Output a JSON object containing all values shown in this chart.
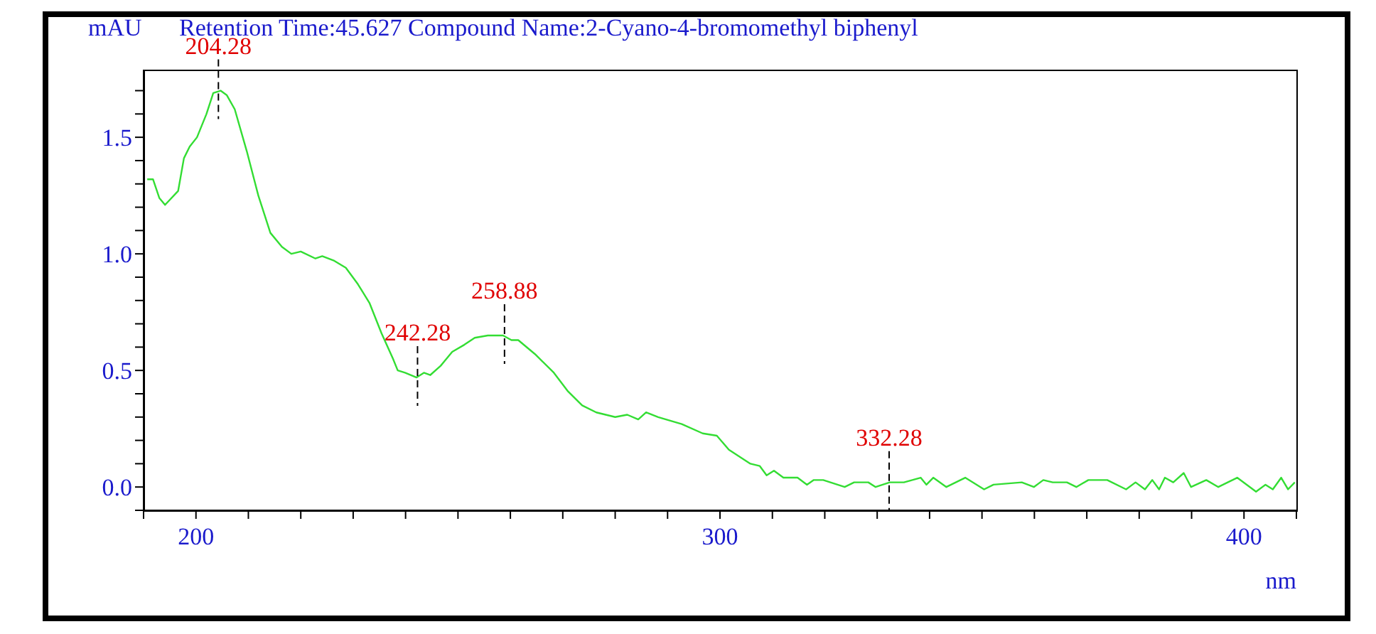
{
  "chart_data": {
    "type": "line",
    "title": "Retention Time:45.627 Compound Name:2-Cyano-4-bromomethyl biphenyl",
    "xlabel": "nm",
    "ylabel": "mAU",
    "color": "#33dd33",
    "marker": "none",
    "x": [
      190.7,
      191.8,
      193.0,
      194.1,
      196.6,
      197.7,
      198.8,
      200.2,
      202.0,
      203.3,
      204.7,
      205.9,
      207.4,
      209.7,
      211.9,
      214.2,
      216.4,
      218.2,
      220.0,
      222.8,
      224.1,
      226.4,
      228.6,
      230.9,
      233.1,
      235.4,
      237.6,
      238.5,
      239.9,
      242.1,
      243.5,
      244.7,
      246.7,
      248.9,
      251.2,
      253.2,
      255.7,
      258.6,
      260.2,
      261.5,
      264.7,
      268.3,
      271.0,
      273.7,
      276.4,
      280.0,
      282.3,
      284.4,
      285.9,
      288.2,
      292.7,
      296.7,
      299.4,
      301.7,
      305.8,
      307.6,
      308.9,
      310.3,
      312.1,
      314.8,
      316.6,
      317.9,
      319.7,
      323.8,
      325.6,
      328.3,
      329.7,
      332.4,
      335.1,
      338.3,
      339.4,
      340.7,
      343.2,
      346.8,
      350.4,
      352.2,
      357.6,
      359.9,
      361.7,
      363.5,
      366.2,
      368.0,
      370.3,
      373.9,
      377.5,
      379.3,
      381.1,
      382.5,
      383.8,
      384.9,
      386.5,
      388.5,
      389.9,
      392.8,
      395.1,
      398.7,
      402.3,
      404.1,
      405.5,
      407.1,
      408.4,
      409.7
    ],
    "values": [
      1.32,
      1.32,
      1.24,
      1.21,
      1.27,
      1.41,
      1.46,
      1.5,
      1.6,
      1.69,
      1.7,
      1.68,
      1.62,
      1.44,
      1.25,
      1.09,
      1.03,
      1.0,
      1.01,
      0.98,
      0.99,
      0.97,
      0.94,
      0.87,
      0.79,
      0.66,
      0.55,
      0.5,
      0.49,
      0.47,
      0.49,
      0.48,
      0.52,
      0.58,
      0.61,
      0.64,
      0.65,
      0.65,
      0.63,
      0.63,
      0.57,
      0.49,
      0.41,
      0.35,
      0.32,
      0.3,
      0.31,
      0.29,
      0.32,
      0.3,
      0.27,
      0.23,
      0.22,
      0.16,
      0.1,
      0.09,
      0.05,
      0.07,
      0.04,
      0.04,
      0.01,
      0.03,
      0.03,
      0.0,
      0.02,
      0.02,
      0.0,
      0.02,
      0.02,
      0.04,
      0.01,
      0.04,
      0.0,
      0.04,
      -0.01,
      0.01,
      0.02,
      0.0,
      0.03,
      0.02,
      0.02,
      0.0,
      0.03,
      0.03,
      -0.01,
      0.02,
      -0.01,
      0.03,
      -0.01,
      0.04,
      0.02,
      0.06,
      0.0,
      0.03,
      0.0,
      0.04,
      -0.02,
      0.01,
      -0.01,
      0.04,
      -0.01,
      0.02
    ],
    "xlim": [
      190,
      410
    ],
    "xticks": [
      {
        "value": 190,
        "label": null
      },
      200,
      {
        "value": 210,
        "label": null
      },
      {
        "value": 220,
        "label": null
      },
      {
        "value": 230,
        "label": null
      },
      {
        "value": 240,
        "label": null
      },
      {
        "value": 250,
        "label": null
      },
      {
        "value": 260,
        "label": null
      },
      {
        "value": 270,
        "label": null
      },
      {
        "value": 280,
        "label": null
      },
      {
        "value": 290,
        "label": null
      },
      300,
      {
        "value": 310,
        "label": null
      },
      {
        "value": 320,
        "label": null
      },
      {
        "value": 330,
        "label": null
      },
      {
        "value": 340,
        "label": null
      },
      {
        "value": 350,
        "label": null
      },
      {
        "value": 360,
        "label": null
      },
      {
        "value": 370,
        "label": null
      },
      {
        "value": 380,
        "label": null
      },
      {
        "value": 390,
        "label": null
      },
      400,
      {
        "value": 410,
        "label": null
      }
    ],
    "ylim": [
      -0.1,
      1.79
    ],
    "yticks": [
      {
        "value": -0.1,
        "label": null
      },
      {
        "value": 0,
        "label": "0.0"
      },
      {
        "value": 0.1,
        "label": null
      },
      {
        "value": 0.2,
        "label": null
      },
      {
        "value": 0.3,
        "label": null
      },
      {
        "value": 0.4,
        "label": null
      },
      {
        "value": 0.5,
        "label": "0.5"
      },
      {
        "value": 0.6,
        "label": null
      },
      {
        "value": 0.7,
        "label": null
      },
      {
        "value": 0.8,
        "label": null
      },
      {
        "value": 0.9,
        "label": null
      },
      {
        "value": 1.0,
        "label": "1.0"
      },
      {
        "value": 1.1,
        "label": null
      },
      {
        "value": 1.2,
        "label": null
      },
      {
        "value": 1.3,
        "label": null
      },
      {
        "value": 1.4,
        "label": null
      },
      {
        "value": 1.5,
        "label": "1.5"
      },
      {
        "value": 1.6,
        "label": null
      },
      {
        "value": 1.7,
        "label": null
      }
    ],
    "annotations": [
      {
        "text": "204.28",
        "x": 204.28,
        "y": 1.7
      },
      {
        "text": "242.28",
        "x": 242.28,
        "y": 0.47
      },
      {
        "text": "258.88",
        "x": 258.88,
        "y": 0.65
      },
      {
        "text": "332.28",
        "x": 332.28,
        "y": 0.02
      }
    ]
  }
}
